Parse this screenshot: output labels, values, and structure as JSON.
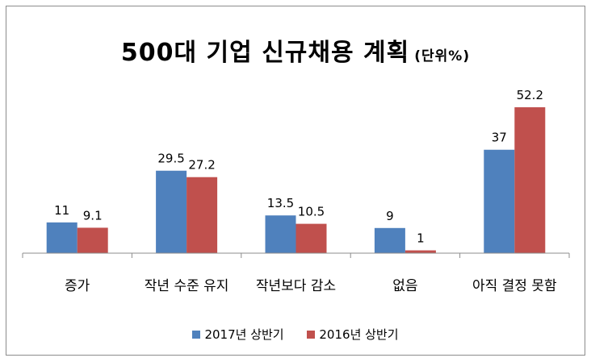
{
  "chart_data": {
    "type": "bar",
    "title": "500대 기업 신규채용 계획",
    "unit_label": "(단위%)",
    "categories": [
      "증가",
      "작년 수준 유지",
      "작년보다 감소",
      "없음",
      "아직 결정 못함"
    ],
    "series": [
      {
        "name": "2017년 상반기",
        "color": "#4f81bd",
        "values": [
          11,
          29.5,
          13.5,
          9,
          37
        ]
      },
      {
        "name": "2016년 상반기",
        "color": "#c0504d",
        "values": [
          9.1,
          27.2,
          10.5,
          1,
          52.2
        ]
      }
    ],
    "value_labels": [
      [
        "11",
        "29.5",
        "13.5",
        "9",
        "37"
      ],
      [
        "9.1",
        "27.2",
        "10.5",
        "1",
        "52.2"
      ]
    ],
    "ylim": [
      0,
      60
    ],
    "grid": false,
    "legend_position": "bottom"
  }
}
